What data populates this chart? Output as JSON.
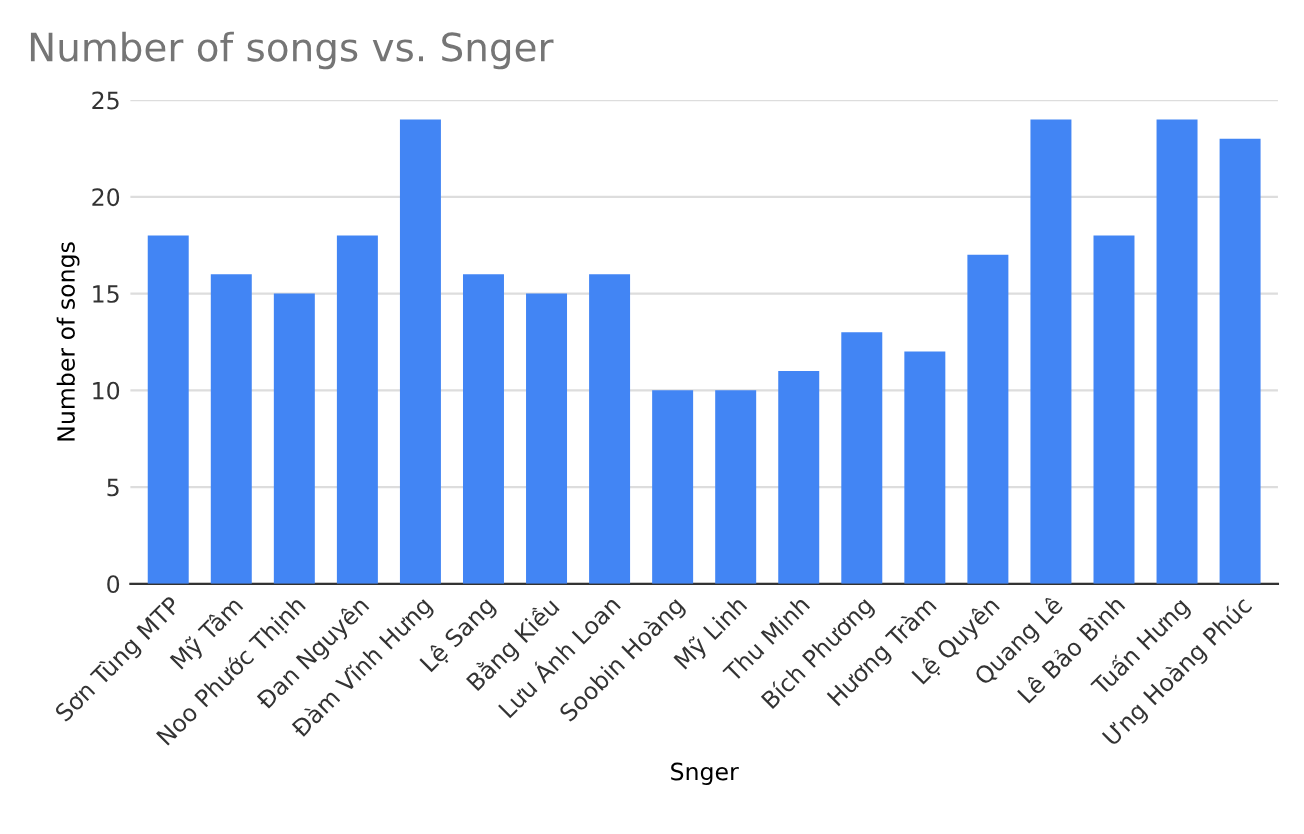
{
  "chart_data": {
    "type": "bar",
    "title": "Number of songs vs. Snger",
    "xlabel": "Snger",
    "ylabel": "Number of songs",
    "categories": [
      "Sơn Tùng MTP",
      "Mỹ Tâm",
      "Noo Phước Thịnh",
      "Đan Nguyên",
      "Đàm Vĩnh Hưng",
      "Lệ Sang",
      "Bằng Kiều",
      "Lưu Ánh Loan",
      "Soobin Hoàng",
      "Mỹ Linh",
      "Thu Minh",
      "Bích Phương",
      "Hương Tràm",
      "Lệ Quyên",
      "Quang Lê",
      "Lê Bảo Bình",
      "Tuấn Hưng",
      "Ưng Hoàng Phúc"
    ],
    "values": [
      18,
      16,
      15,
      18,
      24,
      16,
      15,
      16,
      10,
      10,
      11,
      13,
      12,
      17,
      24,
      18,
      24,
      23
    ],
    "color": "#4285f4",
    "ylim": [
      0,
      25
    ],
    "yticks": [
      0,
      5,
      10,
      15,
      20,
      25
    ],
    "grid": "y"
  }
}
